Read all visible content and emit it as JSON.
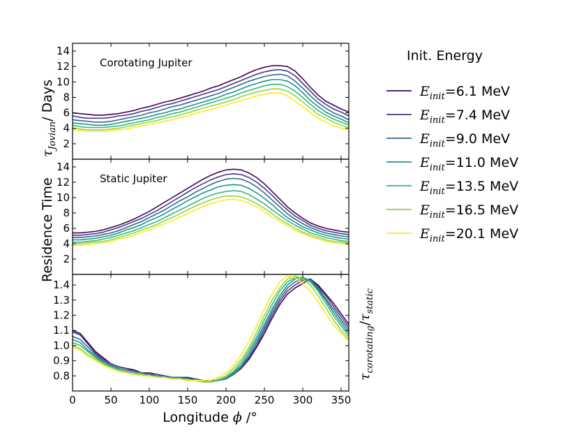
{
  "chart_data": {
    "type": "line",
    "x": [
      0,
      10,
      20,
      30,
      40,
      50,
      60,
      70,
      80,
      90,
      100,
      110,
      120,
      130,
      140,
      150,
      160,
      170,
      180,
      190,
      200,
      210,
      220,
      230,
      240,
      250,
      260,
      270,
      280,
      290,
      300,
      310,
      320,
      330,
      340,
      350,
      360
    ],
    "xlabel": "Longitude",
    "xlabel_symbol": "ϕ",
    "xlabel_unit": "/°",
    "xlim": [
      0,
      360
    ],
    "xticks": [
      "0",
      "50",
      "100",
      "150",
      "200",
      "250",
      "300",
      "350"
    ],
    "shared_ylabel": "Residence Time",
    "legend": {
      "title": "Init. Energy",
      "symbol": "E",
      "subscript": "init",
      "entries": [
        "=6.1 MeV",
        "=7.4 MeV",
        "=9.0 MeV",
        "=11.0 MeV",
        "=13.5 MeV",
        "=16.5 MeV",
        "=20.1 MeV"
      ],
      "colors": [
        "#440154",
        "#443a83",
        "#31688e",
        "#21908d",
        "#35b779",
        "#8fd744",
        "#fde725"
      ],
      "placement": "right"
    },
    "panels": [
      {
        "annotation": "Corotating Jupiter",
        "ylabel_symbol": "τ",
        "ylabel_subscript": "Jovian",
        "ylabel_text": "/ Days",
        "ylim": [
          0,
          15
        ],
        "yticks": [
          "2",
          "4",
          "6",
          "8",
          "10",
          "12",
          "14"
        ],
        "series": [
          {
            "name": "6.1 MeV",
            "values": [
              6.0,
              5.9,
              5.8,
              5.7,
              5.7,
              5.8,
              5.9,
              6.1,
              6.3,
              6.6,
              6.8,
              7.1,
              7.4,
              7.6,
              7.9,
              8.2,
              8.5,
              8.8,
              9.2,
              9.5,
              9.9,
              10.3,
              10.7,
              11.2,
              11.6,
              11.9,
              12.1,
              12.1,
              12.0,
              11.4,
              10.4,
              9.3,
              8.3,
              7.5,
              7.0,
              6.5,
              6.1
            ]
          },
          {
            "name": "7.4 MeV",
            "values": [
              5.6,
              5.4,
              5.3,
              5.3,
              5.3,
              5.4,
              5.6,
              5.7,
              5.9,
              6.2,
              6.4,
              6.7,
              7.0,
              7.2,
              7.5,
              7.8,
              8.1,
              8.4,
              8.7,
              9.0,
              9.4,
              9.8,
              10.2,
              10.6,
              11.0,
              11.3,
              11.5,
              11.6,
              11.4,
              10.8,
              9.8,
              8.8,
              7.8,
              7.1,
              6.5,
              6.1,
              5.6
            ]
          },
          {
            "name": "9.0 MeV",
            "values": [
              5.1,
              5.0,
              4.9,
              4.8,
              4.8,
              4.9,
              5.1,
              5.3,
              5.5,
              5.7,
              6.0,
              6.2,
              6.5,
              6.8,
              7.0,
              7.3,
              7.6,
              7.9,
              8.2,
              8.5,
              8.9,
              9.3,
              9.7,
              10.1,
              10.4,
              10.7,
              10.9,
              11.0,
              10.8,
              10.1,
              9.2,
              8.2,
              7.3,
              6.6,
              6.0,
              5.6,
              5.1
            ]
          },
          {
            "name": "11.0 MeV",
            "values": [
              4.7,
              4.6,
              4.5,
              4.4,
              4.4,
              4.5,
              4.7,
              4.9,
              5.1,
              5.3,
              5.5,
              5.8,
              6.0,
              6.3,
              6.5,
              6.8,
              7.1,
              7.4,
              7.7,
              8.0,
              8.4,
              8.7,
              9.1,
              9.5,
              9.8,
              10.1,
              10.3,
              10.3,
              10.1,
              9.5,
              8.6,
              7.6,
              6.8,
              6.1,
              5.6,
              5.2,
              4.7
            ]
          },
          {
            "name": "13.5 MeV",
            "values": [
              4.4,
              4.2,
              4.1,
              4.1,
              4.1,
              4.2,
              4.3,
              4.5,
              4.7,
              4.9,
              5.1,
              5.4,
              5.6,
              5.9,
              6.1,
              6.4,
              6.7,
              7.0,
              7.3,
              7.6,
              7.9,
              8.2,
              8.6,
              8.9,
              9.2,
              9.5,
              9.7,
              9.7,
              9.4,
              8.8,
              8.0,
              7.1,
              6.3,
              5.7,
              5.2,
              4.8,
              4.4
            ]
          },
          {
            "name": "16.5 MeV",
            "values": [
              4.0,
              3.9,
              3.8,
              3.8,
              3.8,
              3.9,
              4.0,
              4.2,
              4.4,
              4.6,
              4.8,
              5.0,
              5.3,
              5.5,
              5.7,
              6.0,
              6.3,
              6.6,
              6.9,
              7.1,
              7.4,
              7.7,
              8.1,
              8.4,
              8.7,
              8.9,
              9.1,
              9.1,
              8.8,
              8.2,
              7.4,
              6.6,
              5.8,
              5.3,
              4.8,
              4.4,
              4.1
            ]
          },
          {
            "name": "20.1 MeV",
            "values": [
              3.8,
              3.7,
              3.6,
              3.6,
              3.6,
              3.7,
              3.8,
              3.9,
              4.1,
              4.3,
              4.5,
              4.7,
              4.9,
              5.1,
              5.4,
              5.6,
              5.9,
              6.2,
              6.4,
              6.7,
              7.0,
              7.3,
              7.6,
              7.9,
              8.2,
              8.4,
              8.6,
              8.6,
              8.2,
              7.5,
              6.8,
              6.0,
              5.3,
              4.8,
              4.3,
              4.0,
              3.8
            ]
          }
        ]
      },
      {
        "annotation": "Static Jupiter",
        "ylim": [
          0,
          15
        ],
        "yticks": [
          "2",
          "4",
          "6",
          "8",
          "10",
          "12",
          "14"
        ],
        "series": [
          {
            "name": "6.1 MeV",
            "values": [
              5.4,
              5.4,
              5.5,
              5.6,
              5.8,
              6.1,
              6.4,
              6.8,
              7.2,
              7.7,
              8.2,
              8.8,
              9.4,
              10.0,
              10.6,
              11.2,
              11.8,
              12.4,
              12.9,
              13.3,
              13.6,
              13.7,
              13.6,
              13.2,
              12.6,
              11.8,
              10.8,
              9.8,
              8.8,
              8.0,
              7.3,
              6.7,
              6.3,
              6.0,
              5.8,
              5.6,
              5.5
            ]
          },
          {
            "name": "7.4 MeV",
            "values": [
              5.1,
              5.1,
              5.2,
              5.3,
              5.5,
              5.8,
              6.1,
              6.5,
              6.9,
              7.3,
              7.8,
              8.3,
              8.9,
              9.5,
              10.1,
              10.7,
              11.3,
              11.8,
              12.3,
              12.7,
              13.0,
              13.1,
              13.0,
              12.6,
              12.0,
              11.2,
              10.3,
              9.3,
              8.4,
              7.6,
              7.0,
              6.4,
              6.0,
              5.7,
              5.5,
              5.3,
              5.2
            ]
          },
          {
            "name": "9.0 MeV",
            "values": [
              4.8,
              4.8,
              4.9,
              5.0,
              5.2,
              5.4,
              5.7,
              6.1,
              6.5,
              6.9,
              7.4,
              7.9,
              8.4,
              9.0,
              9.6,
              10.1,
              10.7,
              11.2,
              11.7,
              12.1,
              12.4,
              12.5,
              12.4,
              12.0,
              11.4,
              10.6,
              9.7,
              8.8,
              7.9,
              7.2,
              6.6,
              6.1,
              5.7,
              5.4,
              5.2,
              5.0,
              4.9
            ]
          },
          {
            "name": "11.0 MeV",
            "values": [
              4.5,
              4.5,
              4.6,
              4.7,
              4.9,
              5.1,
              5.4,
              5.8,
              6.1,
              6.5,
              7.0,
              7.4,
              7.9,
              8.5,
              9.0,
              9.6,
              10.1,
              10.6,
              11.0,
              11.4,
              11.6,
              11.7,
              11.6,
              11.2,
              10.6,
              9.9,
              9.1,
              8.2,
              7.4,
              6.8,
              6.2,
              5.8,
              5.4,
              5.1,
              4.9,
              4.7,
              4.6
            ]
          },
          {
            "name": "13.5 MeV",
            "values": [
              4.2,
              4.2,
              4.3,
              4.4,
              4.6,
              4.8,
              5.1,
              5.4,
              5.7,
              6.1,
              6.5,
              6.9,
              7.4,
              7.9,
              8.4,
              8.9,
              9.4,
              9.9,
              10.3,
              10.6,
              10.8,
              10.9,
              10.8,
              10.4,
              9.8,
              9.2,
              8.4,
              7.7,
              7.0,
              6.4,
              5.9,
              5.4,
              5.1,
              4.8,
              4.6,
              4.4,
              4.3
            ]
          },
          {
            "name": "16.5 MeV",
            "values": [
              4.0,
              4.0,
              4.1,
              4.2,
              4.3,
              4.5,
              4.8,
              5.1,
              5.4,
              5.8,
              6.1,
              6.5,
              7.0,
              7.4,
              7.9,
              8.4,
              8.9,
              9.3,
              9.7,
              10.0,
              10.2,
              10.2,
              10.1,
              9.7,
              9.2,
              8.6,
              7.9,
              7.2,
              6.6,
              6.0,
              5.5,
              5.1,
              4.8,
              4.5,
              4.3,
              4.2,
              4.1
            ]
          },
          {
            "name": "20.1 MeV",
            "values": [
              3.8,
              3.8,
              3.9,
              4.0,
              4.1,
              4.3,
              4.6,
              4.8,
              5.1,
              5.5,
              5.8,
              6.2,
              6.6,
              7.0,
              7.5,
              7.9,
              8.4,
              8.8,
              9.2,
              9.5,
              9.7,
              9.8,
              9.6,
              9.3,
              8.8,
              8.2,
              7.5,
              6.9,
              6.3,
              5.7,
              5.3,
              4.9,
              4.6,
              4.3,
              4.1,
              4.0,
              3.9
            ]
          }
        ]
      },
      {
        "annotation": "",
        "ylabel_symbol": "τ",
        "ylabel_subscript": "corotating",
        "ylabel_sep": "/",
        "ylabel_symbol2": "τ",
        "ylabel_subscript2": "static",
        "ylim": [
          0.7,
          1.47
        ],
        "yticks": [
          "0.8",
          "0.9",
          "1.0",
          "1.1",
          "1.2",
          "1.3",
          "1.4"
        ],
        "series": [
          {
            "name": "6.1 MeV",
            "values": [
              1.1,
              1.08,
              1.02,
              0.96,
              0.92,
              0.88,
              0.86,
              0.85,
              0.84,
              0.82,
              0.82,
              0.81,
              0.8,
              0.79,
              0.79,
              0.79,
              0.78,
              0.77,
              0.77,
              0.77,
              0.78,
              0.81,
              0.85,
              0.91,
              0.99,
              1.08,
              1.18,
              1.27,
              1.34,
              1.38,
              1.41,
              1.44,
              1.4,
              1.34,
              1.28,
              1.21,
              1.14
            ]
          },
          {
            "name": "7.4 MeV",
            "values": [
              1.09,
              1.07,
              1.01,
              0.95,
              0.91,
              0.88,
              0.86,
              0.85,
              0.83,
              0.82,
              0.81,
              0.81,
              0.8,
              0.79,
              0.79,
              0.78,
              0.78,
              0.77,
              0.76,
              0.77,
              0.78,
              0.81,
              0.85,
              0.92,
              1.0,
              1.1,
              1.2,
              1.29,
              1.36,
              1.4,
              1.43,
              1.44,
              1.39,
              1.33,
              1.26,
              1.19,
              1.12
            ]
          },
          {
            "name": "9.0 MeV",
            "values": [
              1.06,
              1.04,
              0.99,
              0.94,
              0.9,
              0.87,
              0.85,
              0.84,
              0.83,
              0.82,
              0.81,
              0.8,
              0.8,
              0.79,
              0.79,
              0.78,
              0.78,
              0.77,
              0.76,
              0.77,
              0.78,
              0.81,
              0.86,
              0.93,
              1.02,
              1.12,
              1.22,
              1.31,
              1.38,
              1.42,
              1.44,
              1.43,
              1.38,
              1.31,
              1.24,
              1.17,
              1.1
            ]
          },
          {
            "name": "11.0 MeV",
            "values": [
              1.04,
              1.02,
              0.97,
              0.93,
              0.89,
              0.86,
              0.84,
              0.83,
              0.82,
              0.81,
              0.81,
              0.8,
              0.79,
              0.79,
              0.78,
              0.78,
              0.77,
              0.76,
              0.76,
              0.77,
              0.79,
              0.82,
              0.87,
              0.95,
              1.04,
              1.14,
              1.24,
              1.33,
              1.4,
              1.44,
              1.45,
              1.43,
              1.37,
              1.3,
              1.22,
              1.15,
              1.08
            ]
          },
          {
            "name": "13.5 MeV",
            "values": [
              1.02,
              1.0,
              0.96,
              0.92,
              0.88,
              0.86,
              0.84,
              0.83,
              0.82,
              0.81,
              0.8,
              0.8,
              0.79,
              0.78,
              0.78,
              0.78,
              0.77,
              0.76,
              0.76,
              0.77,
              0.79,
              0.83,
              0.89,
              0.97,
              1.06,
              1.17,
              1.27,
              1.36,
              1.42,
              1.45,
              1.45,
              1.42,
              1.36,
              1.28,
              1.2,
              1.13,
              1.06
            ]
          },
          {
            "name": "16.5 MeV",
            "values": [
              1.0,
              0.98,
              0.94,
              0.91,
              0.88,
              0.85,
              0.83,
              0.82,
              0.81,
              0.81,
              0.8,
              0.79,
              0.79,
              0.78,
              0.78,
              0.77,
              0.77,
              0.76,
              0.76,
              0.78,
              0.8,
              0.85,
              0.91,
              0.99,
              1.09,
              1.2,
              1.3,
              1.38,
              1.44,
              1.46,
              1.44,
              1.4,
              1.33,
              1.25,
              1.17,
              1.1,
              1.04
            ]
          },
          {
            "name": "20.1 MeV",
            "values": [
              0.99,
              0.97,
              0.93,
              0.9,
              0.87,
              0.85,
              0.83,
              0.82,
              0.81,
              0.8,
              0.8,
              0.79,
              0.79,
              0.78,
              0.78,
              0.77,
              0.77,
              0.77,
              0.77,
              0.79,
              0.82,
              0.87,
              0.94,
              1.03,
              1.13,
              1.24,
              1.34,
              1.42,
              1.46,
              1.45,
              1.41,
              1.36,
              1.29,
              1.21,
              1.14,
              1.08,
              1.03
            ]
          }
        ]
      }
    ]
  }
}
